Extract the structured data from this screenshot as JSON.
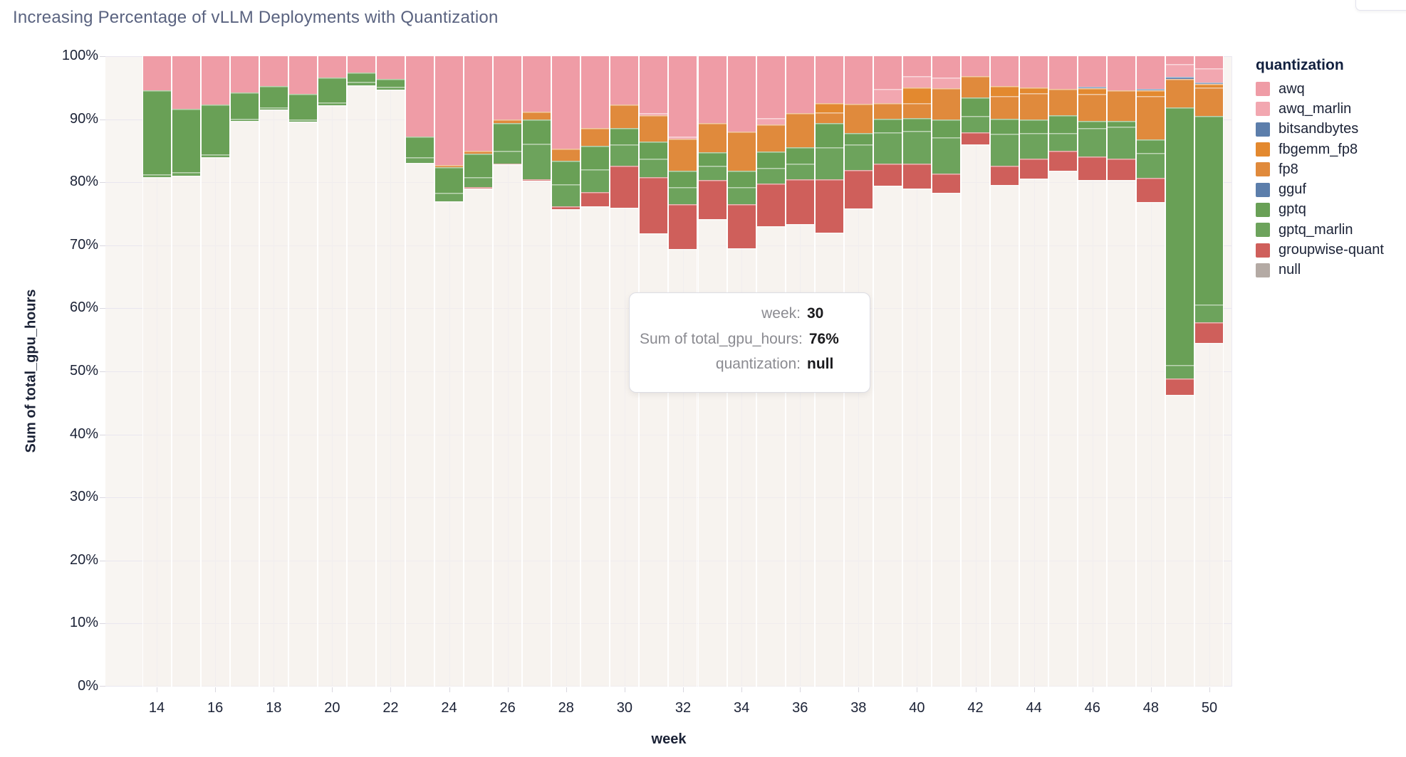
{
  "page": {
    "title": "Increasing Percentage of vLLM Deployments with Quantization"
  },
  "chart_data": {
    "type": "bar",
    "stacked": true,
    "normalized": "percent",
    "title": "Increasing Percentage of vLLM Deployments with Quantization",
    "xlabel": "week",
    "ylabel": "Sum of total_gpu_hours",
    "week_min": 14,
    "week_max": 50,
    "x_ticks": [
      14,
      16,
      18,
      20,
      22,
      24,
      26,
      28,
      30,
      32,
      34,
      36,
      38,
      40,
      42,
      44,
      46,
      48,
      50
    ],
    "y_ticks": [
      {
        "v": 0,
        "label": "0%"
      },
      {
        "v": 10,
        "label": "10%"
      },
      {
        "v": 20,
        "label": "20%"
      },
      {
        "v": 30,
        "label": "30%"
      },
      {
        "v": 40,
        "label": "40%"
      },
      {
        "v": 50,
        "label": "50%"
      },
      {
        "v": 60,
        "label": "60%"
      },
      {
        "v": 70,
        "label": "70%"
      },
      {
        "v": 80,
        "label": "80%"
      },
      {
        "v": 90,
        "label": "90%"
      },
      {
        "v": 100,
        "label": "100%"
      }
    ],
    "ylim": [
      0,
      100
    ],
    "grid": true,
    "legend_position": "right",
    "stack_order_top_to_bottom": [
      "awq",
      "awq_marlin",
      "bitsandbytes",
      "fbgemm_fp8",
      "fp8",
      "gguf",
      "gptq",
      "gptq_marlin",
      "groupwise-quant",
      "null"
    ],
    "colors": {
      "awq": "#EF9CA6",
      "awq_marlin": "#F2A7B0",
      "bitsandbytes": "#5C7EAB",
      "fbgemm_fp8": "#E3892F",
      "fp8": "#E08A3C",
      "gguf": "#5C7EAB",
      "gptq": "#69A056",
      "gptq_marlin": "#6DA35C",
      "groupwise-quant": "#CF5F5B",
      "null": "#B4AAA4"
    },
    "null_bar_color": "rgba(245,241,236,0.55)",
    "weeks": [
      {
        "week": 14,
        "segments": [
          [
            "awq",
            5.4
          ],
          [
            "gptq",
            13.3
          ],
          [
            "gptq_marlin",
            0.5
          ],
          [
            "null",
            80.8
          ]
        ]
      },
      {
        "week": 15,
        "segments": [
          [
            "awq",
            8.3
          ],
          [
            "gptq",
            10.1
          ],
          [
            "gptq_marlin",
            0.6
          ],
          [
            "null",
            81.0
          ]
        ]
      },
      {
        "week": 16,
        "segments": [
          [
            "awq",
            7.7
          ],
          [
            "gptq",
            7.9
          ],
          [
            "gptq_marlin",
            0.4
          ],
          [
            "null",
            84.0
          ]
        ]
      },
      {
        "week": 17,
        "segments": [
          [
            "awq",
            5.8
          ],
          [
            "gptq",
            4.1
          ],
          [
            "gptq_marlin",
            0.4
          ],
          [
            "null",
            89.7
          ]
        ]
      },
      {
        "week": 18,
        "segments": [
          [
            "awq",
            4.7
          ],
          [
            "gptq",
            3.4
          ],
          [
            "gptq_marlin",
            0.4
          ],
          [
            "null",
            91.5
          ]
        ]
      },
      {
        "week": 19,
        "segments": [
          [
            "awq",
            6.0
          ],
          [
            "gptq",
            4.0
          ],
          [
            "gptq_marlin",
            0.4
          ],
          [
            "null",
            89.6
          ]
        ]
      },
      {
        "week": 20,
        "segments": [
          [
            "awq",
            3.4
          ],
          [
            "gptq",
            3.9
          ],
          [
            "gptq_marlin",
            0.5
          ],
          [
            "null",
            92.2
          ]
        ]
      },
      {
        "week": 21,
        "segments": [
          [
            "awq",
            2.6
          ],
          [
            "gptq",
            1.5
          ],
          [
            "gptq_marlin",
            0.5
          ],
          [
            "null",
            95.4
          ]
        ]
      },
      {
        "week": 22,
        "segments": [
          [
            "awq",
            3.6
          ],
          [
            "gptq",
            1.3
          ],
          [
            "gptq_marlin",
            0.4
          ],
          [
            "null",
            94.7
          ]
        ]
      },
      {
        "week": 23,
        "segments": [
          [
            "awq",
            12.8
          ],
          [
            "gptq",
            3.2
          ],
          [
            "gptq_marlin",
            0.9
          ],
          [
            "null",
            83.1
          ]
        ]
      },
      {
        "week": 24,
        "segments": [
          [
            "awq",
            17.3
          ],
          [
            "fp8",
            0.3
          ],
          [
            "gptq",
            4.1
          ],
          [
            "gptq_marlin",
            1.3
          ],
          [
            "null",
            77.0
          ]
        ]
      },
      {
        "week": 25,
        "segments": [
          [
            "awq",
            15.0
          ],
          [
            "fp8",
            0.5
          ],
          [
            "gptq",
            3.7
          ],
          [
            "gptq_marlin",
            1.6
          ],
          [
            "groupwise-quant",
            0.2
          ],
          [
            "null",
            79.0
          ]
        ]
      },
      {
        "week": 26,
        "segments": [
          [
            "awq",
            10.0
          ],
          [
            "fp8",
            0.6
          ],
          [
            "gptq",
            4.4
          ],
          [
            "gptq_marlin",
            2.0
          ],
          [
            "groupwise-quant",
            0.2
          ],
          [
            "null",
            82.8
          ]
        ]
      },
      {
        "week": 27,
        "segments": [
          [
            "awq",
            8.8
          ],
          [
            "fp8",
            1.3
          ],
          [
            "gptq",
            3.8
          ],
          [
            "gptq_marlin",
            5.6
          ],
          [
            "groupwise-quant",
            0.3
          ],
          [
            "null",
            80.2
          ]
        ]
      },
      {
        "week": 28,
        "segments": [
          [
            "awq",
            14.7
          ],
          [
            "fp8",
            1.9
          ],
          [
            "gptq",
            3.7
          ],
          [
            "gptq_marlin",
            3.5
          ],
          [
            "groupwise-quant",
            0.5
          ],
          [
            "null",
            75.7
          ]
        ]
      },
      {
        "week": 29,
        "segments": [
          [
            "awq",
            11.4
          ],
          [
            "fp8",
            2.8
          ],
          [
            "gptq",
            3.8
          ],
          [
            "gptq_marlin",
            3.6
          ],
          [
            "groupwise-quant",
            2.2
          ],
          [
            "null",
            76.2
          ]
        ]
      },
      {
        "week": 30,
        "segments": [
          [
            "awq",
            7.7
          ],
          [
            "fp8",
            3.7
          ],
          [
            "gptq",
            2.6
          ],
          [
            "gptq_marlin",
            3.4
          ],
          [
            "groupwise-quant",
            6.6
          ],
          [
            "null",
            76.0
          ]
        ]
      },
      {
        "week": 31,
        "segments": [
          [
            "awq",
            9.0
          ],
          [
            "awq_marlin",
            0.4
          ],
          [
            "fp8",
            4.2
          ],
          [
            "gptq",
            2.7
          ],
          [
            "gptq_marlin",
            2.9
          ],
          [
            "groupwise-quant",
            8.9
          ],
          [
            "null",
            71.9
          ]
        ]
      },
      {
        "week": 32,
        "segments": [
          [
            "awq",
            12.7
          ],
          [
            "awq_marlin",
            0.4
          ],
          [
            "fp8",
            5.1
          ],
          [
            "gptq",
            2.6
          ],
          [
            "gptq_marlin",
            2.7
          ],
          [
            "groupwise-quant",
            7.1
          ],
          [
            "null",
            69.4
          ]
        ]
      },
      {
        "week": 33,
        "segments": [
          [
            "awq",
            10.6
          ],
          [
            "fp8",
            4.6
          ],
          [
            "gptq",
            2.2
          ],
          [
            "gptq_marlin",
            2.2
          ],
          [
            "groupwise-quant",
            6.2
          ],
          [
            "null",
            74.2
          ]
        ]
      },
      {
        "week": 34,
        "segments": [
          [
            "awq",
            12.0
          ],
          [
            "fp8",
            6.2
          ],
          [
            "gptq",
            2.6
          ],
          [
            "gptq_marlin",
            2.7
          ],
          [
            "groupwise-quant",
            7.0
          ],
          [
            "null",
            69.5
          ]
        ]
      },
      {
        "week": 35,
        "segments": [
          [
            "awq",
            9.8
          ],
          [
            "awq_marlin",
            1.0
          ],
          [
            "fp8",
            4.3
          ],
          [
            "gptq",
            2.6
          ],
          [
            "gptq_marlin",
            2.5
          ],
          [
            "groupwise-quant",
            6.8
          ],
          [
            "null",
            73.0
          ]
        ]
      },
      {
        "week": 36,
        "segments": [
          [
            "awq",
            9.0
          ],
          [
            "fp8",
            5.4
          ],
          [
            "gptq",
            2.6
          ],
          [
            "gptq_marlin",
            2.5
          ],
          [
            "groupwise-quant",
            7.1
          ],
          [
            "null",
            73.4
          ]
        ]
      },
      {
        "week": 37,
        "segments": [
          [
            "awq",
            7.5
          ],
          [
            "fbgemm_fp8",
            1.4
          ],
          [
            "fp8",
            1.7
          ],
          [
            "gptq",
            3.8
          ],
          [
            "gptq_marlin",
            5.1
          ],
          [
            "groupwise-quant",
            8.5
          ],
          [
            "null",
            72.0
          ]
        ]
      },
      {
        "week": 38,
        "segments": [
          [
            "awq",
            7.6
          ],
          [
            "fp8",
            4.6
          ],
          [
            "gptq",
            1.8
          ],
          [
            "gptq_marlin",
            4.1
          ],
          [
            "groupwise-quant",
            6.1
          ],
          [
            "null",
            75.8
          ]
        ]
      },
      {
        "week": 39,
        "segments": [
          [
            "awq",
            5.2
          ],
          [
            "awq_marlin",
            2.2
          ],
          [
            "fp8",
            2.5
          ],
          [
            "gptq",
            2.2
          ],
          [
            "gptq_marlin",
            4.9
          ],
          [
            "groupwise-quant",
            3.6
          ],
          [
            "null",
            79.4
          ]
        ]
      },
      {
        "week": 40,
        "segments": [
          [
            "awq",
            3.2
          ],
          [
            "awq_marlin",
            1.8
          ],
          [
            "fbgemm_fp8",
            2.4
          ],
          [
            "fp8",
            2.4
          ],
          [
            "gptq",
            2.0
          ],
          [
            "gptq_marlin",
            5.2
          ],
          [
            "groupwise-quant",
            4.0
          ],
          [
            "null",
            79.0
          ]
        ]
      },
      {
        "week": 41,
        "segments": [
          [
            "awq",
            3.4
          ],
          [
            "awq_marlin",
            1.7
          ],
          [
            "fp8",
            4.9
          ],
          [
            "gptq",
            2.9
          ],
          [
            "gptq_marlin",
            5.7
          ],
          [
            "groupwise-quant",
            3.1
          ],
          [
            "null",
            78.3
          ]
        ]
      },
      {
        "week": 42,
        "segments": [
          [
            "awq",
            3.2
          ],
          [
            "fp8",
            3.3
          ],
          [
            "gptq",
            3.0
          ],
          [
            "gptq_marlin",
            2.6
          ],
          [
            "groupwise-quant",
            1.9
          ],
          [
            "null",
            86.0
          ]
        ]
      },
      {
        "week": 43,
        "segments": [
          [
            "awq",
            4.7
          ],
          [
            "fbgemm_fp8",
            1.6
          ],
          [
            "fp8",
            3.6
          ],
          [
            "gptq",
            2.4
          ],
          [
            "gptq_marlin",
            5.1
          ],
          [
            "groupwise-quant",
            3.0
          ],
          [
            "null",
            79.6
          ]
        ]
      },
      {
        "week": 44,
        "segments": [
          [
            "awq",
            5.0
          ],
          [
            "fbgemm_fp8",
            0.9
          ],
          [
            "fp8",
            4.2
          ],
          [
            "gptq",
            2.1
          ],
          [
            "gptq_marlin",
            4.0
          ],
          [
            "groupwise-quant",
            3.2
          ],
          [
            "null",
            80.6
          ]
        ]
      },
      {
        "week": 45,
        "segments": [
          [
            "awq",
            5.2
          ],
          [
            "fp8",
            4.2
          ],
          [
            "gptq",
            2.8
          ],
          [
            "gptq_marlin",
            2.8
          ],
          [
            "groupwise-quant",
            3.2
          ],
          [
            "null",
            81.8
          ]
        ]
      },
      {
        "week": 46,
        "segments": [
          [
            "awq",
            4.9
          ],
          [
            "bitsandbytes",
            0.2
          ],
          [
            "fbgemm_fp8",
            0.9
          ],
          [
            "fp8",
            4.3
          ],
          [
            "gptq",
            1.1
          ],
          [
            "gptq_marlin",
            4.5
          ],
          [
            "groupwise-quant",
            3.7
          ],
          [
            "null",
            80.4
          ]
        ]
      },
      {
        "week": 47,
        "segments": [
          [
            "awq",
            5.4
          ],
          [
            "fp8",
            4.9
          ],
          [
            "gptq",
            0.9
          ],
          [
            "gptq_marlin",
            5.0
          ],
          [
            "groupwise-quant",
            3.4
          ],
          [
            "null",
            80.4
          ]
        ]
      },
      {
        "week": 48,
        "segments": [
          [
            "awq",
            5.2
          ],
          [
            "bitsandbytes",
            0.2
          ],
          [
            "fbgemm_fp8",
            0.9
          ],
          [
            "fp8",
            6.9
          ],
          [
            "gptq",
            2.1
          ],
          [
            "gptq_marlin",
            4.0
          ],
          [
            "groupwise-quant",
            3.8
          ],
          [
            "null",
            76.9
          ]
        ]
      },
      {
        "week": 49,
        "segments": [
          [
            "awq",
            1.2
          ],
          [
            "awq_marlin",
            2.1
          ],
          [
            "bitsandbytes",
            0.3
          ],
          [
            "fp8",
            4.5
          ],
          [
            "gptq",
            40.9
          ],
          [
            "gptq_marlin",
            2.1
          ],
          [
            "groupwise-quant",
            2.6
          ],
          [
            "null",
            46.3
          ]
        ]
      },
      {
        "week": 50,
        "segments": [
          [
            "awq",
            1.9
          ],
          [
            "awq_marlin",
            2.3
          ],
          [
            "bitsandbytes",
            0.2
          ],
          [
            "fbgemm_fp8",
            0.6
          ],
          [
            "fp8",
            4.5
          ],
          [
            "gptq",
            29.9
          ],
          [
            "gptq_marlin",
            2.8
          ],
          [
            "groupwise-quant",
            3.3
          ],
          [
            "null",
            54.5
          ]
        ]
      }
    ]
  },
  "legend": {
    "title": "quantization",
    "entries": [
      {
        "label": "awq"
      },
      {
        "label": "awq_marlin"
      },
      {
        "label": "bitsandbytes"
      },
      {
        "label": "fbgemm_fp8"
      },
      {
        "label": "fp8"
      },
      {
        "label": "gguf"
      },
      {
        "label": "gptq"
      },
      {
        "label": "gptq_marlin"
      },
      {
        "label": "groupwise-quant"
      },
      {
        "label": "null"
      }
    ]
  },
  "tooltip": {
    "rows": [
      {
        "label": "week:",
        "value": "30"
      },
      {
        "label": "Sum of total_gpu_hours:",
        "value": "76%"
      },
      {
        "label": "quantization:",
        "value": "null"
      }
    ]
  }
}
